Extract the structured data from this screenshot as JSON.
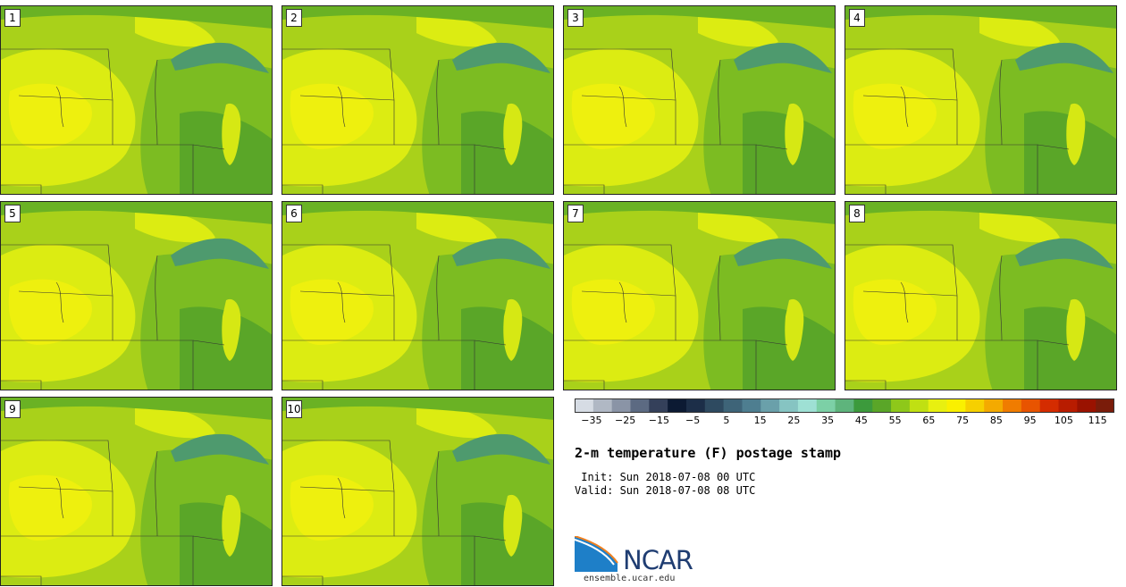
{
  "panels": [
    "1",
    "2",
    "3",
    "4",
    "5",
    "6",
    "7",
    "8",
    "9",
    "10"
  ],
  "colorbar": {
    "colors": [
      "#d6dce4",
      "#b0b8c4",
      "#8a94a6",
      "#5c6a82",
      "#34405a",
      "#0c1a33",
      "#1c2e48",
      "#2e4a60",
      "#3e6478",
      "#4e7e90",
      "#6aa0aa",
      "#86c4c2",
      "#9ee0d4",
      "#7cd0a6",
      "#5eb47c",
      "#3c9a3c",
      "#5aa628",
      "#8ec81a",
      "#c0e012",
      "#e8f010",
      "#faf000",
      "#f6d000",
      "#f4aa00",
      "#f07c00",
      "#e85400",
      "#d42c00",
      "#b81c00",
      "#9a1200",
      "#7a1c0a"
    ],
    "tick_labels": [
      "−35",
      "−25",
      "−15",
      "−5",
      "5",
      "15",
      "25",
      "35",
      "45",
      "55",
      "65",
      "75",
      "85",
      "95",
      "105",
      "115"
    ],
    "min": -40,
    "max": 120,
    "step": 5,
    "first_tick": -35
  },
  "title": "2-m temperature (F) postage stamp",
  "init_text": " Init: Sun 2018-07-08 00 UTC",
  "valid_text": "Valid: Sun 2018-07-08 08 UTC",
  "logo": {
    "name": "NCAR",
    "url_text": "ensemble.ucar.edu"
  },
  "colors": {
    "warm": "#e8f010",
    "mild": "#a9d11a",
    "cool": "#5aa628",
    "lake": "#4e9a6e"
  }
}
